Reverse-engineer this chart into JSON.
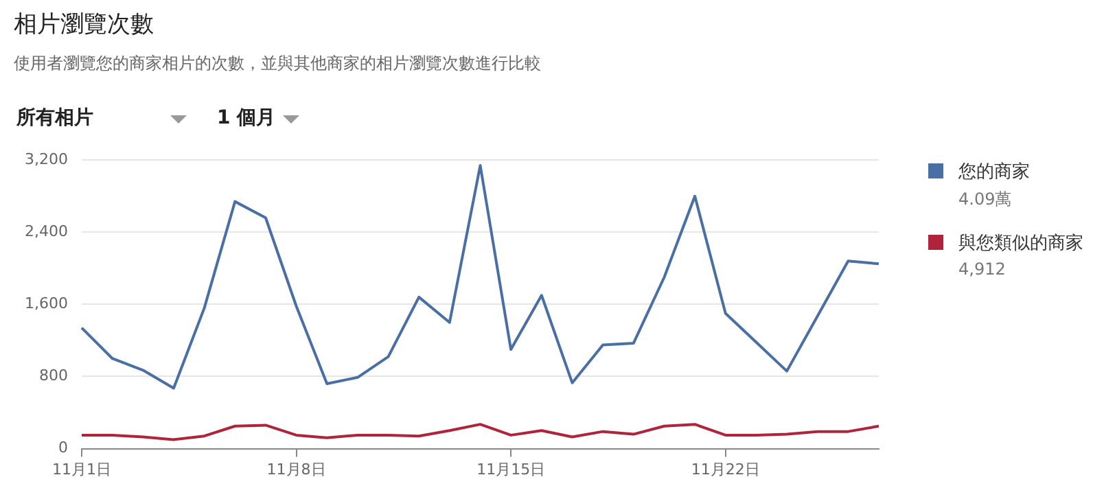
{
  "chart_data": {
    "type": "line",
    "title": "相片瀏覽次數",
    "subtitle": "使用者瀏覽您的商家相片的次數，並與其他商家的相片瀏覽次數進行比較",
    "annotations": [
      "所有相片",
      "1 個月",
      "4.09萬",
      "4,912"
    ],
    "categories": [
      "11月1日",
      null,
      null,
      null,
      null,
      null,
      null,
      "11月8日",
      null,
      null,
      null,
      null,
      null,
      null,
      "11月15日",
      null,
      null,
      null,
      null,
      null,
      null,
      "11月22日",
      null,
      null,
      null,
      null,
      null
    ],
    "series": [
      {
        "name": "您的商家",
        "color": "#4a6fa5",
        "values": [
          1340,
          1000,
          870,
          670,
          1560,
          2740,
          2560,
          1580,
          720,
          790,
          1020,
          1680,
          1400,
          3140,
          1100,
          1700,
          730,
          1150,
          1170,
          1900,
          2800,
          1500,
          1180,
          860,
          1470,
          2080,
          2050
        ]
      },
      {
        "name": "與您類似的商家",
        "color": "#b0233a",
        "values": [
          150,
          150,
          130,
          100,
          140,
          250,
          260,
          150,
          120,
          150,
          150,
          140,
          200,
          270,
          150,
          200,
          130,
          190,
          160,
          250,
          270,
          150,
          150,
          160,
          190,
          190,
          250
        ]
      }
    ],
    "ylim": [
      0,
      3200
    ],
    "yticks": [
      0,
      800,
      {
        "value": 1600,
        "label": "1,600"
      },
      {
        "value": 2400,
        "label": "2,400"
      },
      {
        "value": 3200,
        "label": "3,200"
      }
    ],
    "grid": "y",
    "legend": "right",
    "marker": "none",
    "line_style": "solid"
  }
}
